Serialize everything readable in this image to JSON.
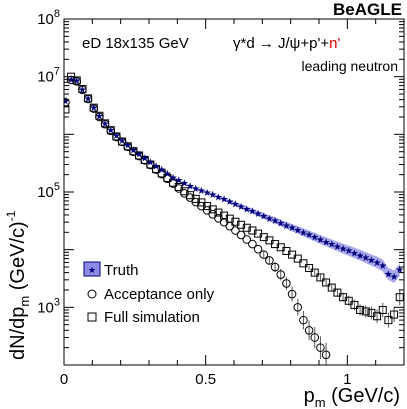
{
  "brand": "BeAGLE",
  "chart_data": {
    "type": "scatter",
    "yscale": "log",
    "xlim": [
      0,
      1.2
    ],
    "ylim": [
      100,
      100000000
    ],
    "xlabel": "p_m (GeV/c)",
    "ylabel": "dN/dp_m (GeV/c)^-1",
    "x_tick_labels": [
      "0",
      "0.5",
      "1"
    ],
    "x_tick_values": [
      0,
      0.5,
      1
    ],
    "y_tick_labels": [
      "10^3",
      "10^5",
      "10^7",
      "10^8"
    ],
    "y_tick_values": [
      1000,
      100000,
      10000000,
      100000000
    ],
    "annotations": {
      "collision": "eD 18x135 GeV",
      "process": "γ*d → J/ψ+p'+",
      "process_highlight": "n'",
      "process_note": "leading neutron"
    },
    "legend_position": "bottom-left",
    "colors": {
      "truth_band": "#8c8ce6",
      "truth_marker": "#00007a",
      "highlight": "#e60000"
    },
    "series": [
      {
        "name": "Truth",
        "marker": "star",
        "x": [
          0.005,
          0.025,
          0.045,
          0.065,
          0.085,
          0.105,
          0.125,
          0.145,
          0.165,
          0.185,
          0.205,
          0.225,
          0.245,
          0.265,
          0.285,
          0.305,
          0.325,
          0.345,
          0.365,
          0.385,
          0.405,
          0.425,
          0.445,
          0.465,
          0.485,
          0.505,
          0.525,
          0.545,
          0.565,
          0.585,
          0.605,
          0.625,
          0.645,
          0.665,
          0.685,
          0.705,
          0.725,
          0.745,
          0.765,
          0.785,
          0.805,
          0.825,
          0.845,
          0.865,
          0.885,
          0.905,
          0.925,
          0.945,
          0.965,
          0.985,
          1.005,
          1.025,
          1.045,
          1.065,
          1.085,
          1.105,
          1.125,
          1.145,
          1.165,
          1.185
        ],
        "values": [
          3800000,
          9000000,
          8500000,
          6000000,
          4200000,
          2900000,
          2100000,
          1550000,
          1200000,
          950000,
          780000,
          650000,
          540000,
          460000,
          390000,
          330000,
          285000,
          245000,
          210000,
          180000,
          160000,
          142000,
          128000,
          116000,
          106000,
          98000,
          90000,
          82000,
          75000,
          68000,
          62000,
          56000,
          51000,
          46500,
          42000,
          38500,
          35000,
          32000,
          29000,
          26500,
          24000,
          22000,
          20000,
          18200,
          16500,
          15000,
          13700,
          12500,
          11400,
          10400,
          9600,
          8800,
          8000,
          7300,
          6600,
          6000,
          5300,
          3800,
          3400,
          4500
        ]
      },
      {
        "name": "Acceptance only",
        "marker": "open-circle",
        "x": [
          0.005,
          0.025,
          0.045,
          0.065,
          0.085,
          0.105,
          0.125,
          0.145,
          0.165,
          0.185,
          0.205,
          0.225,
          0.245,
          0.265,
          0.285,
          0.305,
          0.325,
          0.345,
          0.365,
          0.385,
          0.405,
          0.425,
          0.445,
          0.465,
          0.485,
          0.505,
          0.525,
          0.545,
          0.565,
          0.585,
          0.605,
          0.625,
          0.645,
          0.665,
          0.685,
          0.705,
          0.725,
          0.745,
          0.765,
          0.785,
          0.805,
          0.825,
          0.845,
          0.865,
          0.885,
          0.905,
          0.925
        ],
        "values": [
          3600000,
          8800000,
          8300000,
          5900000,
          4100000,
          2800000,
          2000000,
          1500000,
          1150000,
          900000,
          740000,
          610000,
          500000,
          420000,
          355000,
          295000,
          245000,
          205000,
          170000,
          140000,
          115000,
          95000,
          80000,
          67000,
          57000,
          48000,
          41000,
          35000,
          30000,
          25500,
          21500,
          18000,
          15000,
          12500,
          10200,
          8200,
          6500,
          5000,
          3700,
          2600,
          1700,
          1000,
          600,
          400,
          300,
          200,
          150
        ]
      },
      {
        "name": "Full simulation",
        "marker": "open-square",
        "x": [
          0.005,
          0.025,
          0.045,
          0.065,
          0.085,
          0.105,
          0.125,
          0.145,
          0.165,
          0.185,
          0.205,
          0.225,
          0.245,
          0.265,
          0.285,
          0.305,
          0.325,
          0.345,
          0.365,
          0.385,
          0.405,
          0.425,
          0.445,
          0.465,
          0.485,
          0.505,
          0.525,
          0.545,
          0.565,
          0.585,
          0.605,
          0.625,
          0.645,
          0.665,
          0.685,
          0.705,
          0.725,
          0.745,
          0.765,
          0.785,
          0.805,
          0.825,
          0.845,
          0.865,
          0.885,
          0.905,
          0.925,
          0.945,
          0.965,
          0.985,
          1.005,
          1.025,
          1.045,
          1.065,
          1.085,
          1.105,
          1.125,
          1.145,
          1.165,
          1.185
        ],
        "values": [
          2700000,
          10000000,
          8600000,
          6100000,
          4200000,
          2900000,
          2100000,
          1550000,
          1180000,
          920000,
          750000,
          620000,
          510000,
          430000,
          360000,
          300000,
          250000,
          210000,
          175000,
          145000,
          122000,
          103000,
          88000,
          76000,
          66000,
          57000,
          50000,
          44000,
          39000,
          34500,
          30500,
          27000,
          24000,
          21500,
          19000,
          16500,
          14500,
          12500,
          11000,
          9500,
          8200,
          7000,
          5800,
          4800,
          4000,
          3300,
          2700,
          2200,
          1800,
          1500,
          1300,
          1100,
          900,
          850,
          800,
          700,
          900,
          600,
          750,
          1500
        ]
      }
    ]
  }
}
